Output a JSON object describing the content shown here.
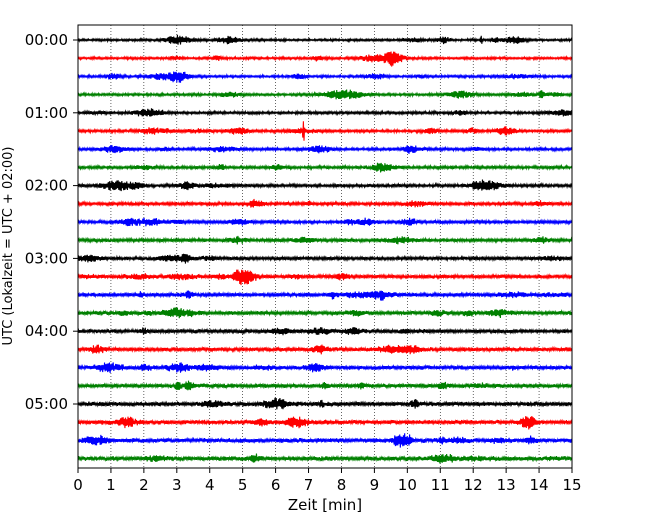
{
  "chart_data": {
    "type": "line",
    "title": "",
    "xlabel": "Zeit  [min]",
    "ylabel": "UTC (Lokalzeit = UTC + 02:00)",
    "xlim": [
      0,
      15
    ],
    "x_ticks": [
      0,
      1,
      2,
      3,
      4,
      5,
      6,
      7,
      8,
      9,
      10,
      11,
      12,
      13,
      14,
      15
    ],
    "x_tick_labels": [
      "0",
      "1",
      "2",
      "3",
      "4",
      "5",
      "6",
      "7",
      "8",
      "9",
      "10",
      "11",
      "12",
      "13",
      "14",
      "15"
    ],
    "x_grid": "dotted",
    "y_tick_labels": [
      "00:00",
      "01:00",
      "02:00",
      "03:00",
      "04:00",
      "05:00"
    ],
    "trace_interval_min": 15,
    "trace_count": 24,
    "color_cycle": [
      "#000000",
      "#ff0000",
      "#0000ff",
      "#008000"
    ],
    "events": [
      {
        "trace": 5,
        "x": 6.85,
        "amplitude": 10,
        "note": "spike"
      },
      {
        "trace": 13,
        "x": 5.15,
        "amplitude": 6,
        "note": "burst"
      },
      {
        "trace": 2,
        "x": 3.1,
        "amplitude": 5,
        "note": "burst"
      },
      {
        "trace": 22,
        "x": 9.8,
        "amplitude": 6,
        "note": "burst"
      },
      {
        "trace": 1,
        "x": 9.6,
        "amplitude": 7,
        "note": "burst"
      },
      {
        "trace": 0,
        "x": 12.25,
        "amplitude": 5,
        "note": "spike"
      }
    ]
  }
}
